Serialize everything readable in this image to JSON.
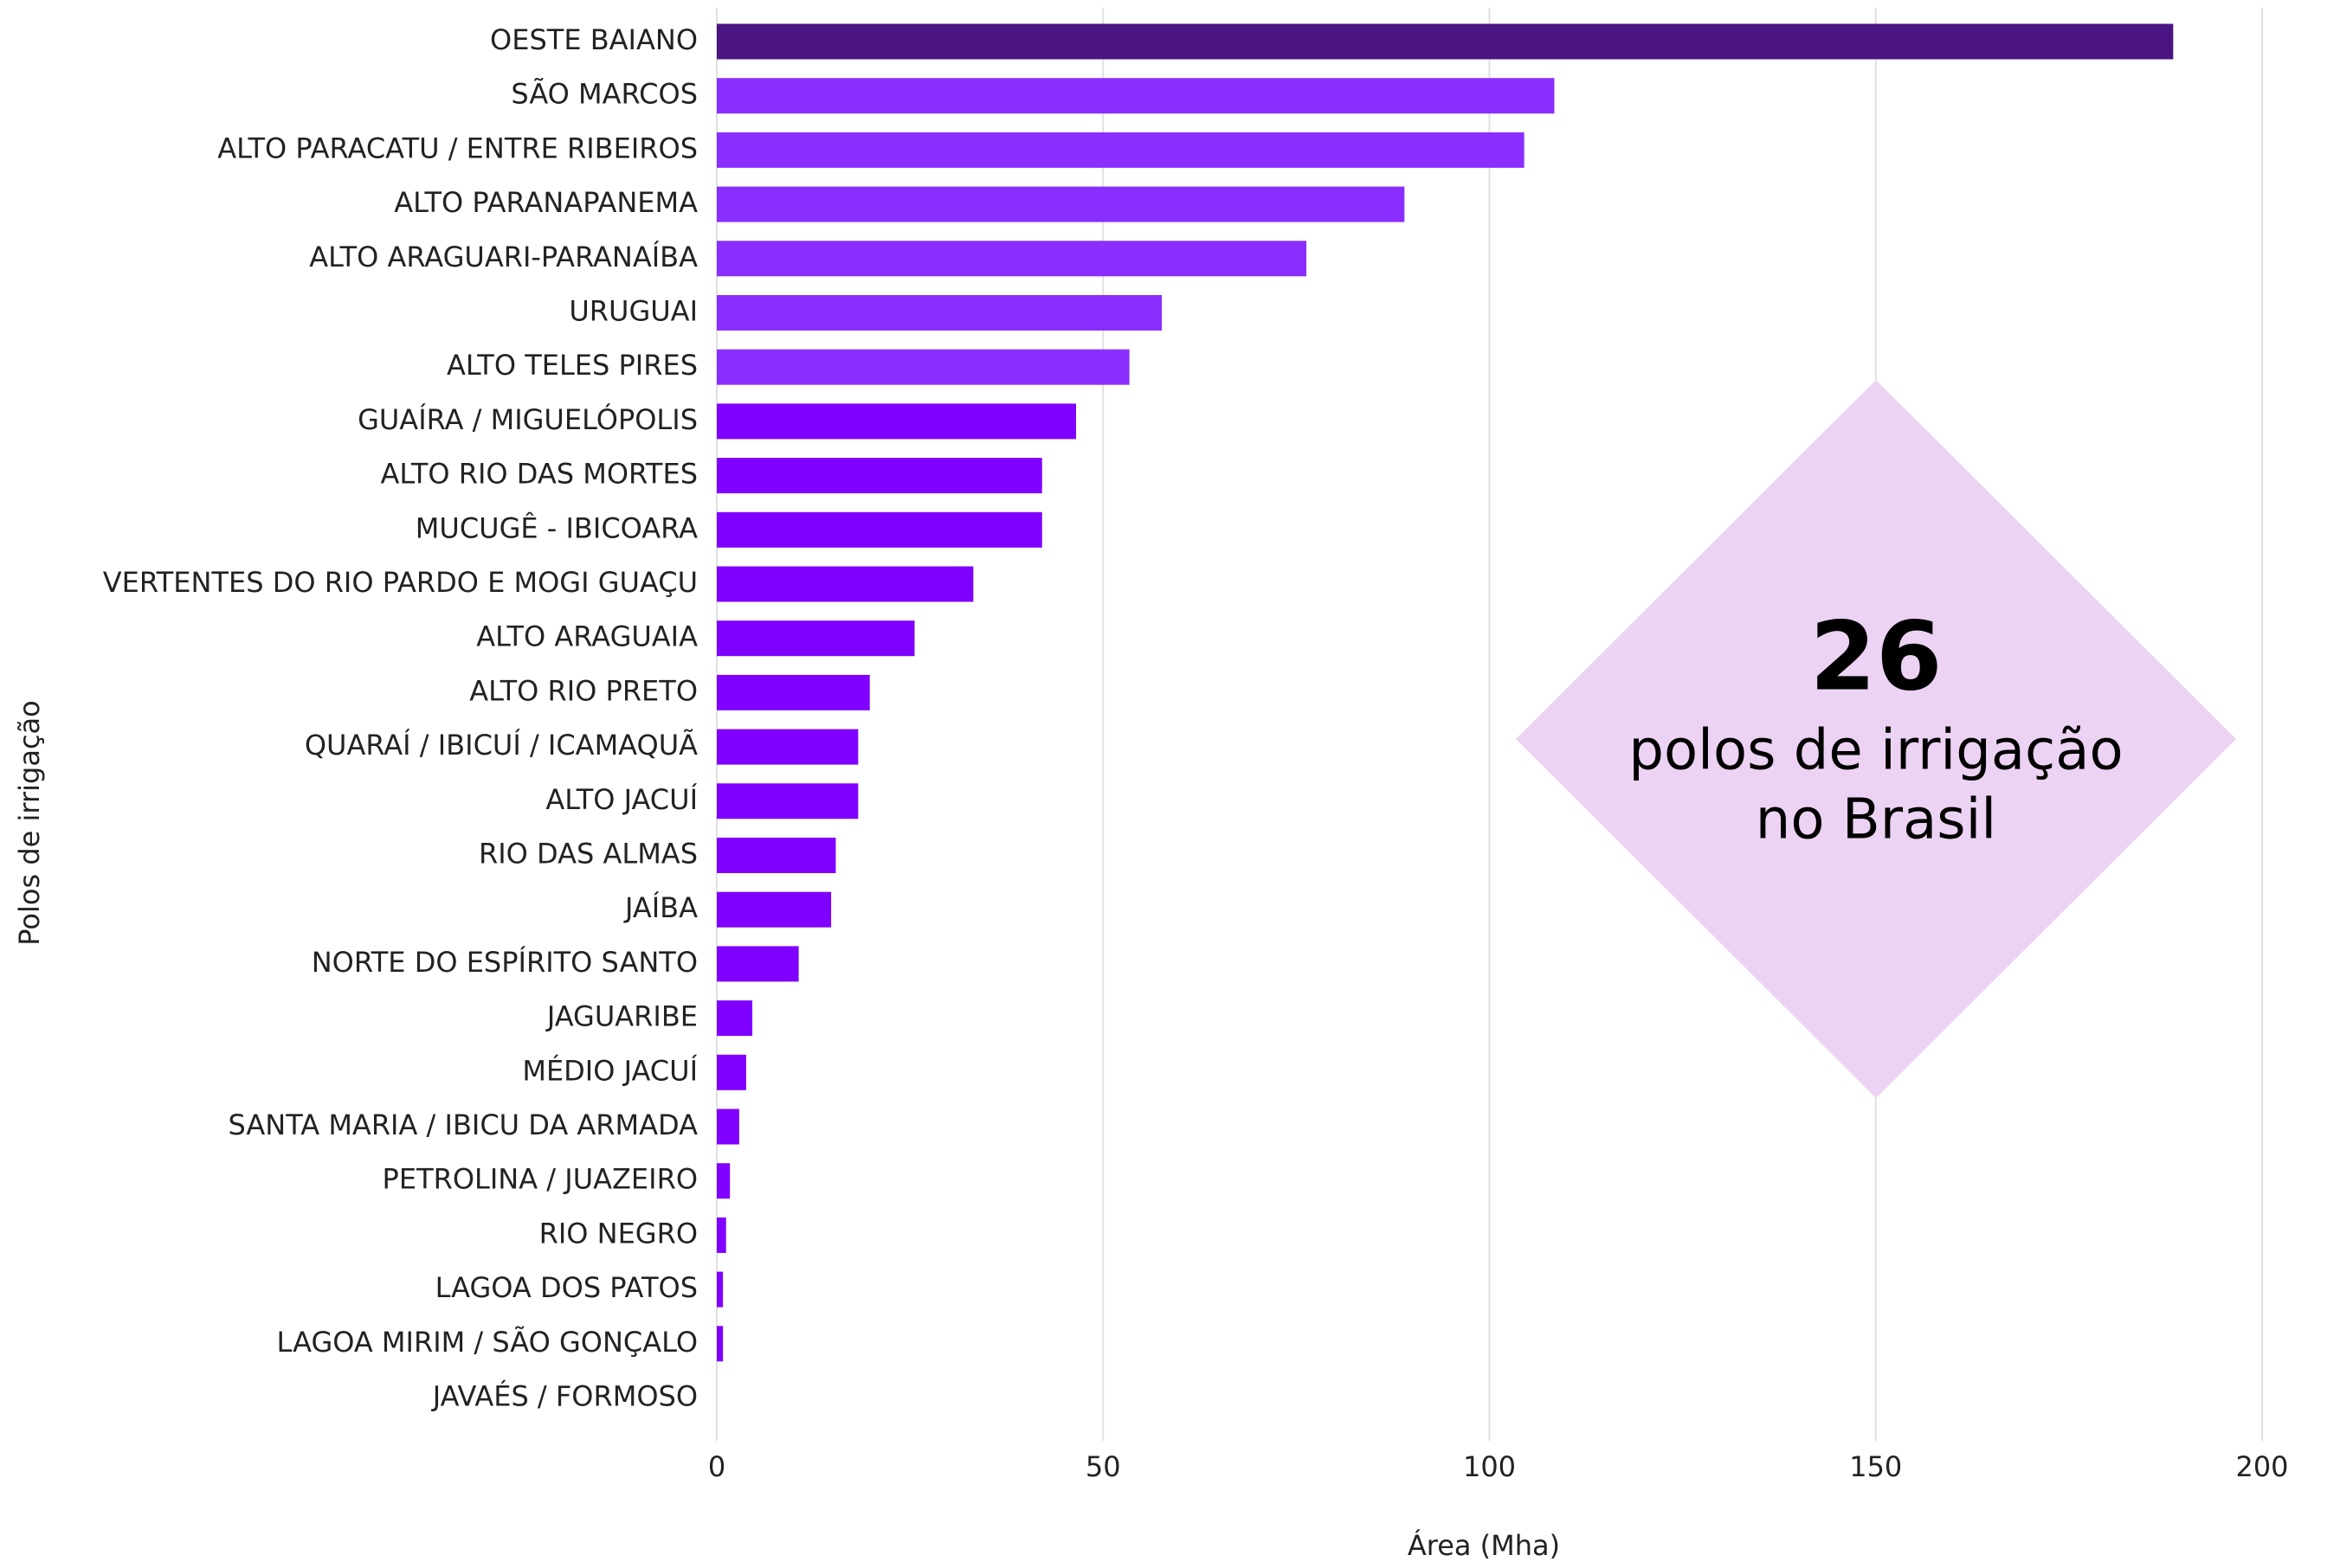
{
  "chart_data": {
    "type": "bar",
    "orientation": "horizontal",
    "xlabel": "Área (Mha)",
    "ylabel": "Polos de irrigação",
    "categories": [
      "OESTE BAIANO",
      "SÃO MARCOS",
      "ALTO PARACATU / ENTRE RIBEIROS",
      "ALTO PARANAPANEMA",
      "ALTO ARAGUARI-PARANAÍBA",
      "URUGUAI",
      "ALTO TELES PIRES",
      "GUAÍRA / MIGUELÓPOLIS",
      "ALTO RIO DAS MORTES",
      "MUCUGÊ - IBICOARA",
      "VERTENTES DO RIO PARDO E MOGI GUAÇU",
      "ALTO ARAGUAIA",
      "ALTO RIO PRETO",
      "QUARAÍ / IBICUÍ / ICAMAQUÃ",
      "ALTO JACUÍ",
      "RIO DAS ALMAS",
      "JAÍBA",
      "NORTE DO ESPÍRITO SANTO",
      "JAGUARIBE",
      "MÉDIO JACUÍ",
      "SANTA MARIA / IBICU DA ARMADA",
      "PETROLINA / JUAZEIRO",
      "RIO NEGRO",
      "LAGOA DOS PATOS",
      "LAGOA MIRIM / SÃO GONÇALO",
      "JAVAÉS / FORMOSO"
    ],
    "values": [
      188.5,
      108.4,
      104.5,
      89.0,
      76.3,
      57.6,
      53.4,
      46.5,
      42.1,
      42.1,
      33.2,
      25.6,
      19.8,
      18.3,
      18.3,
      15.4,
      14.8,
      10.6,
      4.6,
      3.8,
      2.9,
      1.7,
      1.2,
      0.8,
      0.8,
      0
    ],
    "colors": [
      "#4a1482",
      "#8a2eff",
      "#8a2eff",
      "#8a2eff",
      "#8a2eff",
      "#8a2eff",
      "#8a2eff",
      "#8000ff",
      "#8000ff",
      "#8000ff",
      "#8000ff",
      "#8000ff",
      "#8000ff",
      "#8000ff",
      "#8000ff",
      "#8000ff",
      "#8000ff",
      "#8000ff",
      "#8000ff",
      "#8000ff",
      "#8000ff",
      "#8000ff",
      "#8000ff",
      "#8000ff",
      "#8000ff",
      "#8000ff"
    ],
    "xlim": [
      0,
      200
    ],
    "xticks": [
      0,
      50,
      100,
      150,
      200
    ],
    "grid": true,
    "annotation": {
      "number": "26",
      "lines": [
        "polos de irrigação",
        "no Brasil"
      ],
      "color": "#ecd3f3"
    }
  }
}
